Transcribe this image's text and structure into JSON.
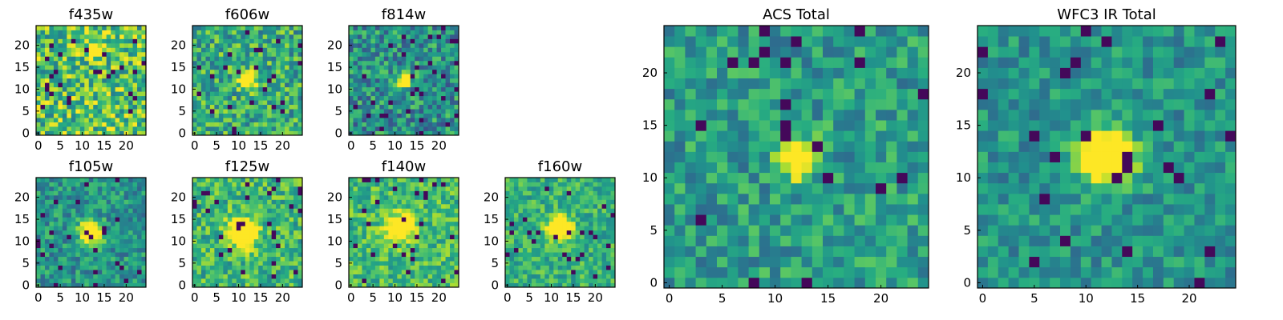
{
  "chart_data": [
    {
      "type": "heatmap",
      "title": "f435w",
      "colormap": "viridis",
      "grid_size": [
        25,
        25
      ],
      "xticks": [
        "0",
        "5",
        "10",
        "15",
        "20"
      ],
      "yticks": [
        "0",
        "5",
        "10",
        "15",
        "20"
      ],
      "source_peak": [
        13,
        19
      ]
    },
    {
      "type": "heatmap",
      "title": "f606w",
      "colormap": "viridis",
      "grid_size": [
        25,
        25
      ],
      "xticks": [
        "0",
        "5",
        "10",
        "15",
        "20"
      ],
      "yticks": [
        "0",
        "5",
        "10",
        "15",
        "20"
      ],
      "source_peak": [
        12,
        12
      ]
    },
    {
      "type": "heatmap",
      "title": "f814w",
      "colormap": "viridis",
      "grid_size": [
        25,
        25
      ],
      "xticks": [
        "0",
        "5",
        "10",
        "15",
        "20"
      ],
      "yticks": [
        "0",
        "5",
        "10",
        "15",
        "20"
      ],
      "source_peak": [
        12,
        12
      ]
    },
    {
      "type": "heatmap",
      "title": "f105w",
      "colormap": "viridis",
      "grid_size": [
        25,
        25
      ],
      "xticks": [
        "0",
        "5",
        "10",
        "15",
        "20"
      ],
      "yticks": [
        "0",
        "5",
        "10",
        "15",
        "20"
      ],
      "source_peak": [
        12,
        12
      ]
    },
    {
      "type": "heatmap",
      "title": "f125w",
      "colormap": "viridis",
      "grid_size": [
        25,
        25
      ],
      "xticks": [
        "0",
        "5",
        "10",
        "15",
        "20"
      ],
      "yticks": [
        "0",
        "5",
        "10",
        "15",
        "20"
      ],
      "source_peak": [
        11,
        12
      ]
    },
    {
      "type": "heatmap",
      "title": "f140w",
      "colormap": "viridis",
      "grid_size": [
        25,
        25
      ],
      "xticks": [
        "0",
        "5",
        "10",
        "15",
        "20"
      ],
      "yticks": [
        "0",
        "5",
        "10",
        "15",
        "20"
      ],
      "source_peak": [
        11,
        13
      ]
    },
    {
      "type": "heatmap",
      "title": "f160w",
      "colormap": "viridis",
      "grid_size": [
        25,
        25
      ],
      "xticks": [
        "0",
        "5",
        "10",
        "15",
        "20"
      ],
      "yticks": [
        "0",
        "5",
        "10",
        "15",
        "20"
      ],
      "source_peak": [
        12,
        13
      ]
    },
    {
      "type": "heatmap",
      "title": "ACS Total",
      "colormap": "viridis",
      "grid_size": [
        25,
        25
      ],
      "xticks": [
        "0",
        "5",
        "10",
        "15",
        "20"
      ],
      "yticks": [
        "0",
        "5",
        "10",
        "15",
        "20"
      ],
      "source_peak": [
        12,
        12
      ]
    },
    {
      "type": "heatmap",
      "title": "WFC3 IR Total",
      "colormap": "viridis",
      "grid_size": [
        25,
        25
      ],
      "xticks": [
        "0",
        "5",
        "10",
        "15",
        "20"
      ],
      "yticks": [
        "0",
        "5",
        "10",
        "15",
        "20"
      ],
      "source_peak": [
        12,
        12
      ]
    }
  ]
}
